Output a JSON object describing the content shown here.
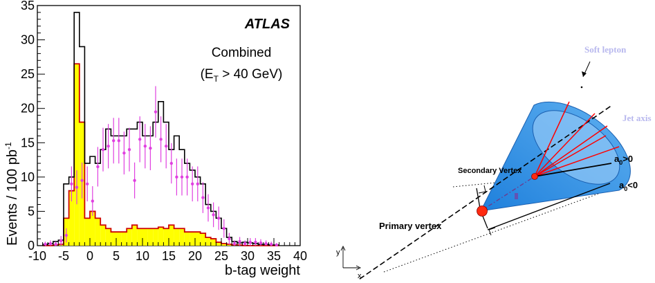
{
  "chart_data": [
    {
      "type": "bar",
      "subtype": "histogram",
      "xlabel": "b-tag weight",
      "ylabel": "Events / 100 pb",
      "ylabel_superscript": "-1",
      "xlim": [
        -10,
        40
      ],
      "ylim": [
        0,
        35
      ],
      "xticks": [
        "-10",
        "-5",
        "0",
        "5",
        "10",
        "15",
        "20",
        "25",
        "30",
        "35",
        "40"
      ],
      "yticks": [
        "0",
        "5",
        "10",
        "15",
        "20",
        "25",
        "30",
        "35"
      ],
      "annotations": {
        "experiment": "ATLAS",
        "selection_line1": "Combined",
        "selection_line2_pre": "(E",
        "selection_line2_sub": "T",
        "selection_line2_post": " > 40 GeV)"
      },
      "bin_width": 1,
      "bin_low_edges": [
        -9,
        -8,
        -7,
        -6,
        -5,
        -4,
        -3,
        -2,
        -1,
        0,
        1,
        2,
        3,
        4,
        5,
        6,
        7,
        8,
        9,
        10,
        11,
        12,
        13,
        14,
        15,
        16,
        17,
        18,
        19,
        20,
        21,
        22,
        23,
        24,
        25,
        26,
        27,
        28,
        29,
        30,
        31,
        32,
        33,
        34,
        35
      ],
      "series": [
        {
          "style": "step outline (black)",
          "color": "#000000",
          "values": [
            0.2,
            0.3,
            0.6,
            0.8,
            9,
            10,
            34,
            29,
            12,
            13,
            12,
            14,
            17,
            16,
            16,
            16,
            17,
            17,
            18,
            16,
            16,
            18,
            21,
            18,
            14,
            16,
            14,
            12,
            11,
            10,
            9,
            6,
            5,
            4,
            2.5,
            1.2,
            0.6,
            0.4,
            0.5,
            0.4,
            0.3,
            0.2,
            0.2,
            0.1,
            0.1
          ]
        },
        {
          "style": "filled (yellow, red outline)",
          "color": "#ffff00",
          "edge_color": "#cc0000",
          "values": [
            0,
            0,
            0.1,
            0.2,
            4,
            8,
            26.5,
            18,
            4,
            5,
            4,
            3,
            2.5,
            2,
            2,
            2,
            2.5,
            3,
            2.5,
            2.5,
            2.5,
            2.5,
            2.7,
            2.5,
            3,
            2.5,
            2.5,
            2,
            2,
            2,
            1.8,
            1.2,
            1,
            0.5,
            0.3,
            0.2,
            0.1,
            0.1,
            0,
            0,
            0,
            0,
            0,
            0,
            0
          ]
        },
        {
          "style": "points with error bars (magenta)",
          "color": "#e040e0",
          "values": [
            0.2,
            0.3,
            0.2,
            0.7,
            1.5,
            9,
            8.5,
            9.5,
            9,
            6.5,
            11.5,
            14,
            14.5,
            15.3,
            15.3,
            13.5,
            14,
            9.5,
            15.5,
            14.5,
            14.2,
            19.5,
            15.5,
            14.5,
            12,
            10,
            10,
            10,
            9,
            9,
            7,
            5.5,
            4.5,
            4,
            2.5,
            1,
            0.3,
            0.6,
            0.3,
            0.5,
            0.5,
            0.4,
            0.3,
            0.2,
            0.1
          ]
        }
      ]
    }
  ],
  "diagram": {
    "soft_lepton": "Soft lepton",
    "jet_axis": "Jet axis",
    "secondary_vertex": "Secondary Vertex",
    "primary_vertex": "Primary vertex",
    "a0_pos_base": "a",
    "a0_pos_sub": "0",
    "a0_pos_rest": ">0",
    "a0_neg_base": "a",
    "a0_neg_sub": "0",
    "a0_neg_rest": "<0",
    "axis_x": "x",
    "axis_y": "y",
    "colors": {
      "cone_fill": "#3d9be9",
      "cone_end": "#8cc4f5",
      "tracks": "#ff0000",
      "vertex": "#ff2a10",
      "label_light": "#b8b8ee"
    }
  }
}
